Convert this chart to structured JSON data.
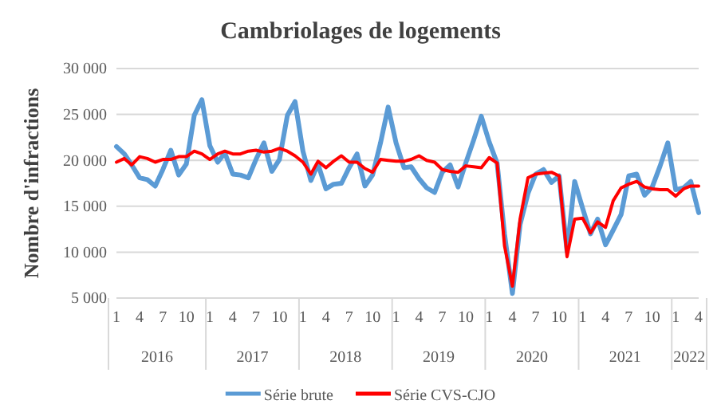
{
  "chart_data": {
    "type": "line",
    "title": "Cambriolages de logements",
    "ylabel": "Nombre d'infractions",
    "x": [
      "2016-01",
      "2016-02",
      "2016-03",
      "2016-04",
      "2016-05",
      "2016-06",
      "2016-07",
      "2016-08",
      "2016-09",
      "2016-10",
      "2016-11",
      "2016-12",
      "2017-01",
      "2017-02",
      "2017-03",
      "2017-04",
      "2017-05",
      "2017-06",
      "2017-07",
      "2017-08",
      "2017-09",
      "2017-10",
      "2017-11",
      "2017-12",
      "2018-01",
      "2018-02",
      "2018-03",
      "2018-04",
      "2018-05",
      "2018-06",
      "2018-07",
      "2018-08",
      "2018-09",
      "2018-10",
      "2018-11",
      "2018-12",
      "2019-01",
      "2019-02",
      "2019-03",
      "2019-04",
      "2019-05",
      "2019-06",
      "2019-07",
      "2019-08",
      "2019-09",
      "2019-10",
      "2019-11",
      "2019-12",
      "2020-01",
      "2020-02",
      "2020-03",
      "2020-04",
      "2020-05",
      "2020-06",
      "2020-07",
      "2020-08",
      "2020-09",
      "2020-10",
      "2020-11",
      "2020-12",
      "2021-01",
      "2021-02",
      "2021-03",
      "2021-04",
      "2021-05",
      "2021-06",
      "2021-07",
      "2021-08",
      "2021-09",
      "2021-10",
      "2021-11",
      "2021-12",
      "2022-01",
      "2022-02",
      "2022-03",
      "2022-04"
    ],
    "series": [
      {
        "name": "Série brute",
        "color": "#5b9bd5",
        "values": [
          21500,
          20700,
          19500,
          18100,
          17900,
          17200,
          19000,
          21100,
          18400,
          19600,
          24900,
          26600,
          21600,
          19800,
          20800,
          18500,
          18400,
          18100,
          20100,
          21900,
          18800,
          20100,
          24900,
          26400,
          21000,
          17800,
          19600,
          16900,
          17400,
          17500,
          19200,
          20700,
          17200,
          18400,
          21900,
          25800,
          21900,
          19200,
          19300,
          18000,
          17000,
          16500,
          18700,
          19500,
          17100,
          19700,
          22200,
          24800,
          22000,
          19700,
          12000,
          5500,
          13000,
          16400,
          18500,
          19000,
          17600,
          18300,
          10100,
          17700,
          14800,
          12000,
          13600,
          10800,
          12400,
          14100,
          18300,
          18500,
          16200,
          17100,
          19400,
          21900,
          16800,
          17000,
          17700,
          14300
        ]
      },
      {
        "name": "Série CVS-CJO",
        "color": "#ff0000",
        "values": [
          19800,
          20200,
          19500,
          20400,
          20200,
          19800,
          20100,
          20100,
          20400,
          20400,
          21000,
          20700,
          20100,
          20700,
          21000,
          20700,
          20700,
          21000,
          21100,
          20900,
          21000,
          21300,
          21000,
          20500,
          19800,
          18500,
          19900,
          19200,
          19900,
          20500,
          19800,
          19800,
          19100,
          18700,
          20100,
          20000,
          19900,
          19900,
          20100,
          20500,
          20000,
          19800,
          19000,
          18800,
          18700,
          19400,
          19300,
          19200,
          20300,
          19700,
          10700,
          6300,
          13600,
          18100,
          18500,
          18600,
          18700,
          18300,
          9500,
          13600,
          13700,
          12100,
          13300,
          12700,
          15600,
          17000,
          17400,
          17700,
          17100,
          16900,
          16800,
          16800,
          16100,
          16900,
          17200,
          17200
        ]
      }
    ],
    "xlim": [
      "2016-01",
      "2022-04"
    ],
    "xticks": [
      {
        "value": "2016-01",
        "label": "1"
      },
      {
        "value": "2016-04",
        "label": "4"
      },
      {
        "value": "2016-07",
        "label": "7"
      },
      {
        "value": "2016-10",
        "label": "10"
      },
      {
        "value": "2017-01",
        "label": "1"
      },
      {
        "value": "2017-04",
        "label": "4"
      },
      {
        "value": "2017-07",
        "label": "7"
      },
      {
        "value": "2017-10",
        "label": "10"
      },
      {
        "value": "2018-01",
        "label": "1"
      },
      {
        "value": "2018-04",
        "label": "4"
      },
      {
        "value": "2018-07",
        "label": "7"
      },
      {
        "value": "2018-10",
        "label": "10"
      },
      {
        "value": "2019-01",
        "label": "1"
      },
      {
        "value": "2019-04",
        "label": "4"
      },
      {
        "value": "2019-07",
        "label": "7"
      },
      {
        "value": "2019-10",
        "label": "10"
      },
      {
        "value": "2020-01",
        "label": "1"
      },
      {
        "value": "2020-04",
        "label": "4"
      },
      {
        "value": "2020-07",
        "label": "7"
      },
      {
        "value": "2020-10",
        "label": "10"
      },
      {
        "value": "2021-01",
        "label": "1"
      },
      {
        "value": "2021-04",
        "label": "4"
      },
      {
        "value": "2021-07",
        "label": "7"
      },
      {
        "value": "2021-10",
        "label": "10"
      },
      {
        "value": "2022-01",
        "label": "1"
      },
      {
        "value": "2022-04",
        "label": "4"
      }
    ],
    "annotations": [
      "2016",
      "2017",
      "2018",
      "2019",
      "2020",
      "2021",
      "2022"
    ],
    "ylim": [
      5000,
      30000
    ],
    "yticks": [
      {
        "value": 5000,
        "label": "5 000"
      },
      {
        "value": 10000,
        "label": "10 000"
      },
      {
        "value": 15000,
        "label": "15 000"
      },
      {
        "value": 20000,
        "label": "20 000"
      },
      {
        "value": 25000,
        "label": "25 000"
      },
      {
        "value": 30000,
        "label": "30 000"
      }
    ],
    "grid": "y",
    "legend": "bottom",
    "marker": "none",
    "line_style": "solid"
  }
}
